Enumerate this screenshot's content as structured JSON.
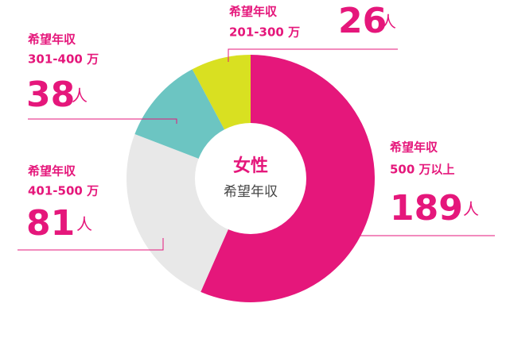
{
  "chart_data": {
    "type": "donut",
    "title": "女性",
    "subtitle": "希望年収",
    "category_prefix": "希望年収",
    "categories": [
      "500 万以上",
      "401-500 万",
      "301-400 万",
      "201-300 万"
    ],
    "values": [
      189,
      81,
      38,
      26
    ],
    "unit": "人",
    "colors": [
      "#e5177b",
      "#e8e8e8",
      "#6cc5c2",
      "#d9e021"
    ]
  }
}
